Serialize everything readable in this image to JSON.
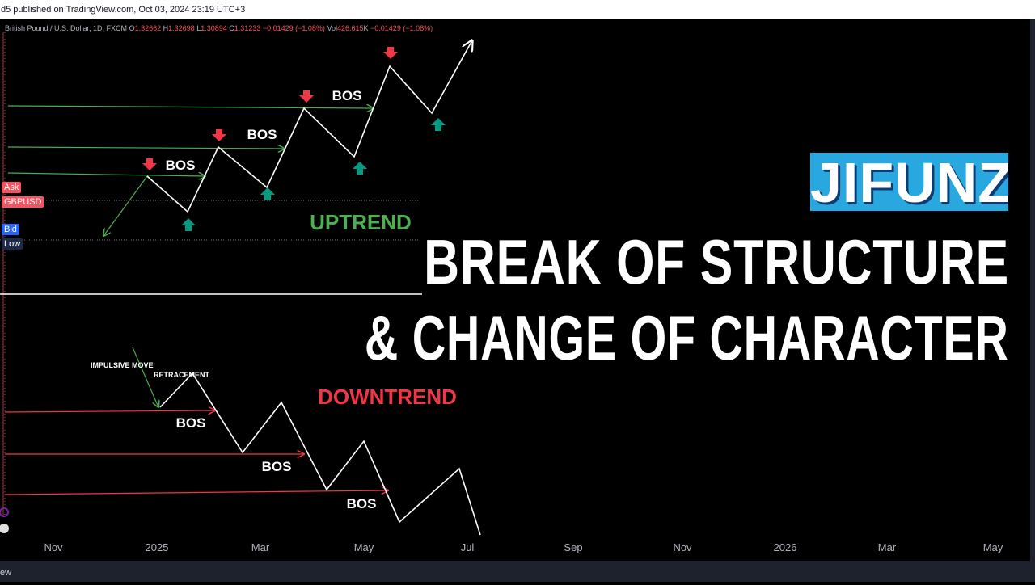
{
  "header": {
    "published_text": "d5 published on TradingView.com, Oct 03, 2024 23:19 UTC+3"
  },
  "legend": {
    "symbol": "British Pound / U.S. Dollar, 1D, FXCM",
    "open_label": "O",
    "open": "1.32662",
    "high_label": "H",
    "high": "1.32698",
    "low_label": "L",
    "low": "1.30894",
    "close_label": "C",
    "close": "1.31233",
    "change": "−0.01429 (−1.08%)",
    "volume_label": "Vol",
    "volume": "426.615",
    "volume_unit": "K",
    "volume_change": "−0.01429 (−1.08%)"
  },
  "price_tags": {
    "ask": "Ask",
    "symbol": "GBPUSD",
    "bid": "Bid",
    "low": "Low"
  },
  "chart_labels": {
    "uptrend": "UPTREND",
    "downtrend": "DOWNTREND",
    "bos": "BOS",
    "impulsive_move": "IMPULSIVE MOVE",
    "retracement": "RETRACEMENT"
  },
  "title": {
    "brand": "JIFUNZE",
    "line1": "BREAK OF STRUCTURE",
    "line2": "& CHANGE OF CHARACTER"
  },
  "x_axis": [
    "Nov",
    "2025",
    "Mar",
    "May",
    "Jul",
    "Sep",
    "Nov",
    "2026",
    "Mar",
    "May"
  ],
  "footer": {
    "text": "ew"
  },
  "colors": {
    "up_green": "#4caf50",
    "down_red": "#f23645",
    "teal_arrow": "#089981",
    "brand_blue": "#29a8e0",
    "ask_red": "#f7525f",
    "bid_blue": "#2962ff"
  }
}
